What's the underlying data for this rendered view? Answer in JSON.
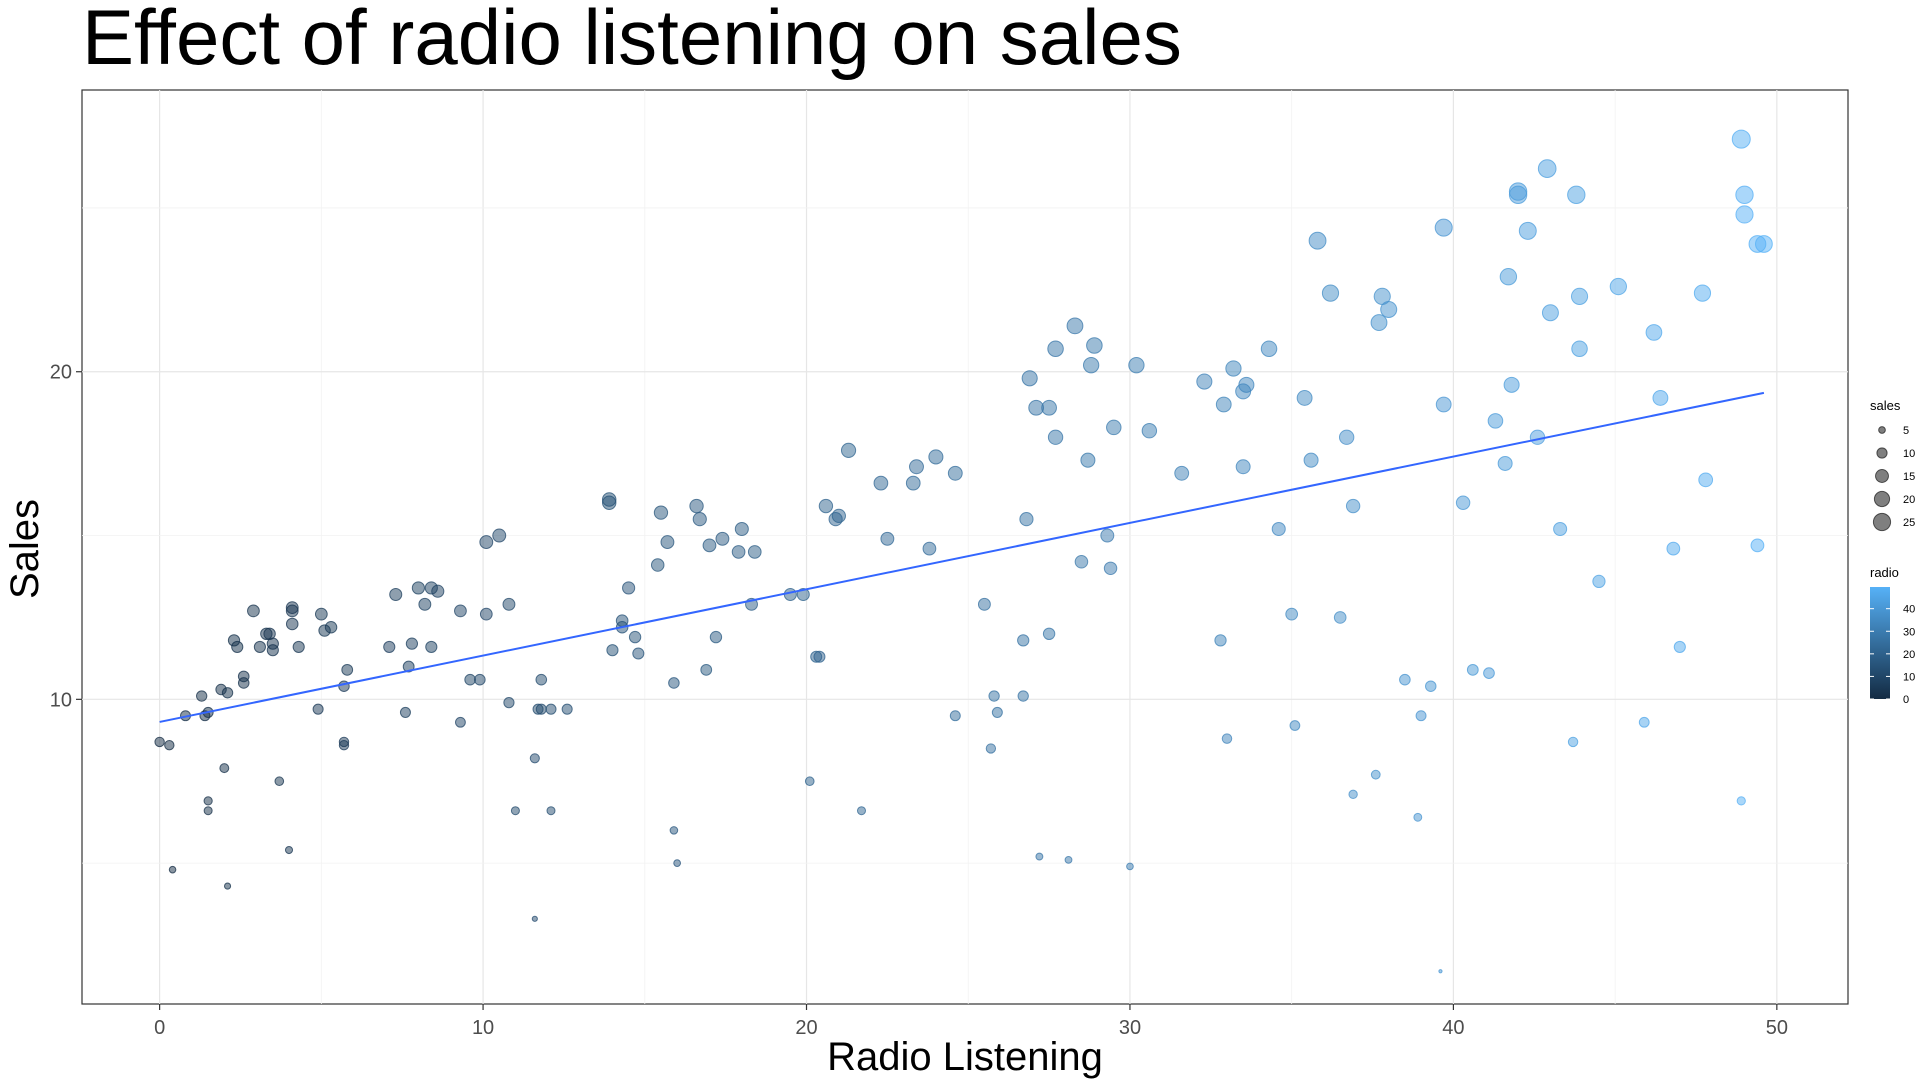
{
  "chart_data": {
    "type": "scatter",
    "title": "Effect of radio listening on sales",
    "xlabel": "Radio Listening",
    "ylabel": "Sales",
    "xlim": [
      -2.4,
      52.2
    ],
    "ylim": [
      0.7,
      28.6
    ],
    "xticks": [
      0,
      10,
      20,
      30,
      40,
      50
    ],
    "yticks": [
      10,
      20
    ],
    "x_tick_labels": [
      "0",
      "10",
      "20",
      "30",
      "40",
      "50"
    ],
    "y_tick_labels": [
      "10",
      "20"
    ],
    "grid": true,
    "legend_position": "right",
    "size_legend": {
      "title": "sales",
      "entries": [
        {
          "label": "5",
          "value": 5
        },
        {
          "label": "10",
          "value": 10
        },
        {
          "label": "15",
          "value": 15
        },
        {
          "label": "20",
          "value": 20
        },
        {
          "label": "25",
          "value": 25
        }
      ]
    },
    "color_legend": {
      "title": "radio",
      "labels": [
        "40",
        "30",
        "20",
        "10",
        "0"
      ],
      "values": [
        40,
        30,
        20,
        10,
        0
      ],
      "low_color": "#132B43",
      "high_color": "#56B1F7"
    },
    "point_opacity": 0.5,
    "trend_line": {
      "color": "#3366FF",
      "intercept": 9.31,
      "slope": 0.2025,
      "x_range": [
        0,
        49.6
      ]
    },
    "x": [
      0,
      0.3,
      0.4,
      0.8,
      1.3,
      1.4,
      1.5,
      1.5,
      1.5,
      1.9,
      2.0,
      2.1,
      2.1,
      2.3,
      2.4,
      2.6,
      2.6,
      2.9,
      3.1,
      3.3,
      3.4,
      3.5,
      3.5,
      3.7,
      4.0,
      4.1,
      4.1,
      4.1,
      4.3,
      4.9,
      5.0,
      5.1,
      5.3,
      5.7,
      5.7,
      5.7,
      5.8,
      7.1,
      7.3,
      7.6,
      7.7,
      7.8,
      8.0,
      8.2,
      8.4,
      8.4,
      8.6,
      9.3,
      9.3,
      9.6,
      9.9,
      10.1,
      10.1,
      10.5,
      10.8,
      10.8,
      11.0,
      11.6,
      11.6,
      11.7,
      11.8,
      11.8,
      12.1,
      12.1,
      12.6,
      13.9,
      13.9,
      14.0,
      14.3,
      14.3,
      14.5,
      14.7,
      14.8,
      15.4,
      15.5,
      15.7,
      15.9,
      15.9,
      16.0,
      16.6,
      16.7,
      16.9,
      17.0,
      17.2,
      17.4,
      17.9,
      18.0,
      18.3,
      18.4,
      19.5,
      19.9,
      20.1,
      20.3,
      20.4,
      20.6,
      20.9,
      21.0,
      21.3,
      21.7,
      22.3,
      22.5,
      23.3,
      23.4,
      23.8,
      24.0,
      24.6,
      24.6,
      25.5,
      25.7,
      25.8,
      25.9,
      26.7,
      26.7,
      26.8,
      26.9,
      27.1,
      27.2,
      27.5,
      27.5,
      27.7,
      27.7,
      28.1,
      28.3,
      28.5,
      28.7,
      28.8,
      28.9,
      29.3,
      29.4,
      29.5,
      30.0,
      30.2,
      30.6,
      31.6,
      32.3,
      32.8,
      32.9,
      33.0,
      33.2,
      33.5,
      33.5,
      33.6,
      34.3,
      34.6,
      35.0,
      35.1,
      35.4,
      35.6,
      35.8,
      36.2,
      36.5,
      36.7,
      36.9,
      36.9,
      37.6,
      37.7,
      37.8,
      38.0,
      38.5,
      38.9,
      39.0,
      39.3,
      39.6,
      39.7,
      39.7,
      40.3,
      40.6,
      41.1,
      41.3,
      41.6,
      41.7,
      41.8,
      42.0,
      42.0,
      42.3,
      42.6,
      42.9,
      43.0,
      43.3,
      43.7,
      43.8,
      43.9,
      43.9,
      44.5,
      45.1,
      45.9,
      46.2,
      46.4,
      46.8,
      47.0,
      47.7,
      47.8,
      48.9,
      48.9,
      49.0,
      49.0,
      49.4,
      49.4,
      49.6
    ],
    "y": [
      8.7,
      8.6,
      4.8,
      9.5,
      10.1,
      9.5,
      6.6,
      6.9,
      9.6,
      10.3,
      7.9,
      10.2,
      4.3,
      11.8,
      11.6,
      10.5,
      10.7,
      12.7,
      11.6,
      12.0,
      12.0,
      11.7,
      11.5,
      7.5,
      5.4,
      12.3,
      12.7,
      12.8,
      11.6,
      9.7,
      12.6,
      12.1,
      12.2,
      8.7,
      8.6,
      10.4,
      10.9,
      11.6,
      13.2,
      9.6,
      11.0,
      11.7,
      13.4,
      12.9,
      11.6,
      13.4,
      13.3,
      12.7,
      9.3,
      10.6,
      10.6,
      12.6,
      14.8,
      15.0,
      9.9,
      12.9,
      6.6,
      3.3,
      8.2,
      9.7,
      10.6,
      9.7,
      6.6,
      9.7,
      9.7,
      16.1,
      16.0,
      11.5,
      12.4,
      12.2,
      13.4,
      11.9,
      11.4,
      14.1,
      15.7,
      14.8,
      10.5,
      6.0,
      5.0,
      15.9,
      15.5,
      10.9,
      14.7,
      11.9,
      14.9,
      14.5,
      15.2,
      12.9,
      14.5,
      13.2,
      13.2,
      7.5,
      11.3,
      11.3,
      15.9,
      15.5,
      15.6,
      17.6,
      6.6,
      16.6,
      14.9,
      16.6,
      17.1,
      14.6,
      17.4,
      9.5,
      16.9,
      12.9,
      8.5,
      10.1,
      9.6,
      10.1,
      11.8,
      15.5,
      19.8,
      18.9,
      5.2,
      18.9,
      12.0,
      20.7,
      18.0,
      5.1,
      21.4,
      14.2,
      17.3,
      20.2,
      20.8,
      15.0,
      14.0,
      18.3,
      4.9,
      20.2,
      18.2,
      16.9,
      19.7,
      11.8,
      19.0,
      8.8,
      20.1,
      17.1,
      19.4,
      19.6,
      20.7,
      15.2,
      12.6,
      9.2,
      19.2,
      17.3,
      24.0,
      22.4,
      12.5,
      18.0,
      15.9,
      7.1,
      7.7,
      21.5,
      22.3,
      21.9,
      10.6,
      6.4,
      9.5,
      10.4,
      1.7,
      24.4,
      19.0,
      16.0,
      10.9,
      10.8,
      18.5,
      17.2,
      22.9,
      19.6,
      25.5,
      25.4,
      24.3,
      18.0,
      26.2,
      21.8,
      15.2,
      8.7,
      25.4,
      22.3,
      20.7,
      13.6,
      22.6,
      9.3,
      21.2,
      19.2,
      14.6,
      11.6,
      22.4,
      16.7,
      27.1,
      6.9,
      25.4,
      24.8,
      23.9,
      14.7,
      23.9
    ],
    "s": [
      8.7,
      8.6,
      4.8,
      9.5,
      10.1,
      9.5,
      6.6,
      6.9,
      9.6,
      10.3,
      7.9,
      10.2,
      4.3,
      11.8,
      11.6,
      10.5,
      10.7,
      12.7,
      11.6,
      12.0,
      12.0,
      11.7,
      11.5,
      7.5,
      5.4,
      12.3,
      12.7,
      12.8,
      11.6,
      9.7,
      12.6,
      12.1,
      12.2,
      8.7,
      8.6,
      10.4,
      10.9,
      11.6,
      13.2,
      9.6,
      11.0,
      11.7,
      13.4,
      12.9,
      11.6,
      13.4,
      13.3,
      12.7,
      9.3,
      10.6,
      10.6,
      12.6,
      14.8,
      15.0,
      9.9,
      12.9,
      6.6,
      3.3,
      8.2,
      9.7,
      10.6,
      9.7,
      6.6,
      9.7,
      9.7,
      16.1,
      16.0,
      11.5,
      12.4,
      12.2,
      13.4,
      11.9,
      11.4,
      14.1,
      15.7,
      14.8,
      10.5,
      6.0,
      5.0,
      15.9,
      15.5,
      10.9,
      14.7,
      11.9,
      14.9,
      14.5,
      15.2,
      12.9,
      14.5,
      13.2,
      13.2,
      7.5,
      11.3,
      11.3,
      15.9,
      15.5,
      15.6,
      17.6,
      6.6,
      16.6,
      14.9,
      16.6,
      17.1,
      14.6,
      17.4,
      9.5,
      16.9,
      12.9,
      8.5,
      10.1,
      9.6,
      10.1,
      11.8,
      15.5,
      19.8,
      18.9,
      5.2,
      18.9,
      12.0,
      20.7,
      18.0,
      5.1,
      21.4,
      14.2,
      17.3,
      20.2,
      20.8,
      15.0,
      14.0,
      18.3,
      4.9,
      20.2,
      18.2,
      16.9,
      19.7,
      11.8,
      19.0,
      8.8,
      20.1,
      17.1,
      19.4,
      19.6,
      20.7,
      15.2,
      12.6,
      9.2,
      19.2,
      17.3,
      24.0,
      22.4,
      12.5,
      18.0,
      15.9,
      7.1,
      7.7,
      21.5,
      22.3,
      21.9,
      10.6,
      6.4,
      9.5,
      10.4,
      1.7,
      24.4,
      19.0,
      16.0,
      10.9,
      10.8,
      18.5,
      17.2,
      22.9,
      19.6,
      25.5,
      25.4,
      24.3,
      18.0,
      26.2,
      21.8,
      15.2,
      8.7,
      25.4,
      22.3,
      20.7,
      13.6,
      22.6,
      9.3,
      21.2,
      19.2,
      14.6,
      11.6,
      22.4,
      16.7,
      27.1,
      6.9,
      25.4,
      24.8,
      23.9,
      14.7,
      23.9
    ]
  }
}
